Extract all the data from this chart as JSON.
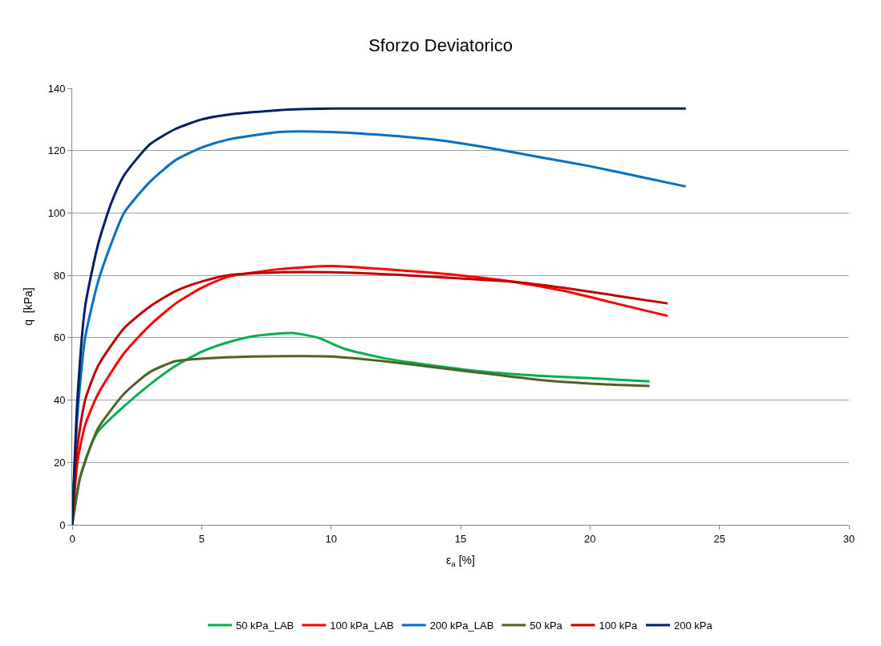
{
  "chart_data": {
    "type": "line",
    "title": "Sforzo Deviatorico",
    "xlabel": "ε$_{a}$ [%]",
    "ylabel": "q  [kPa]",
    "xlim": [
      0,
      30
    ],
    "xticks": [
      0,
      5,
      10,
      15,
      20,
      25,
      30
    ],
    "ylim": [
      0,
      140
    ],
    "yticks": [
      0,
      20,
      40,
      60,
      80,
      100,
      120,
      140
    ],
    "grid": "y",
    "legend": "bottom",
    "marker": "none",
    "line_style": "solid",
    "series": [
      {
        "name": "50 kPa_LAB",
        "color": "#00b050",
        "x": [
          0,
          0.3,
          0.7,
          1,
          2,
          3,
          4,
          5,
          6,
          7,
          8.5,
          9.5,
          10.5,
          12,
          14,
          16,
          18,
          20,
          22.3
        ],
        "values": [
          0,
          15,
          25,
          30,
          38,
          45,
          51,
          55.5,
          58.5,
          60.5,
          61.5,
          60,
          56.5,
          53.5,
          51,
          49,
          47.8,
          47,
          46
        ]
      },
      {
        "name": "100 kPa_LAB",
        "color": "#ff0000",
        "x": [
          0,
          0.2,
          0.5,
          1,
          2,
          3,
          4,
          5,
          6,
          8,
          10,
          12,
          15,
          17,
          19,
          21,
          23
        ],
        "values": [
          0,
          20,
          32,
          42,
          55,
          64,
          71,
          76,
          79.5,
          82,
          83,
          82,
          80,
          78,
          75,
          71,
          67
        ]
      },
      {
        "name": "200 kPa_LAB",
        "color": "#0070c0",
        "x": [
          0,
          0.2,
          0.5,
          1,
          1.5,
          2,
          3,
          4,
          5,
          6,
          8,
          10,
          12,
          14,
          16,
          18,
          20,
          22,
          23.7
        ],
        "values": [
          0,
          35,
          60,
          78,
          90,
          100,
          110,
          117,
          121,
          123.5,
          126,
          126,
          125,
          123.5,
          121,
          118,
          115,
          111.5,
          108.5
        ]
      },
      {
        "name": "50 kPa",
        "color": "#4f6228",
        "x": [
          0,
          0.3,
          0.7,
          1,
          2,
          3,
          4,
          5,
          7,
          10,
          12,
          14,
          16,
          18,
          20,
          22.3
        ],
        "values": [
          0,
          15,
          25,
          31,
          42,
          49,
          52.5,
          53.3,
          54,
          54,
          52.5,
          50.5,
          48.5,
          46.5,
          45.3,
          44.5
        ]
      },
      {
        "name": "100 kPa",
        "color": "#c00000",
        "x": [
          0,
          0.2,
          0.5,
          1,
          2,
          3,
          4,
          5,
          6,
          8,
          10,
          13,
          15,
          17,
          19,
          21,
          23
        ],
        "values": [
          0,
          25,
          40,
          51,
          63,
          70,
          75,
          78,
          80,
          81,
          81,
          80,
          79,
          78,
          76,
          73.5,
          71
        ]
      },
      {
        "name": "200 kPa",
        "color": "#002060",
        "x": [
          0,
          0.2,
          0.5,
          1,
          1.5,
          2,
          3,
          4,
          5,
          6,
          8,
          10,
          23.7
        ],
        "values": [
          0,
          40,
          70,
          90,
          103,
          112,
          122,
          127,
          130,
          131.5,
          133,
          133.5,
          133.5
        ]
      }
    ]
  }
}
